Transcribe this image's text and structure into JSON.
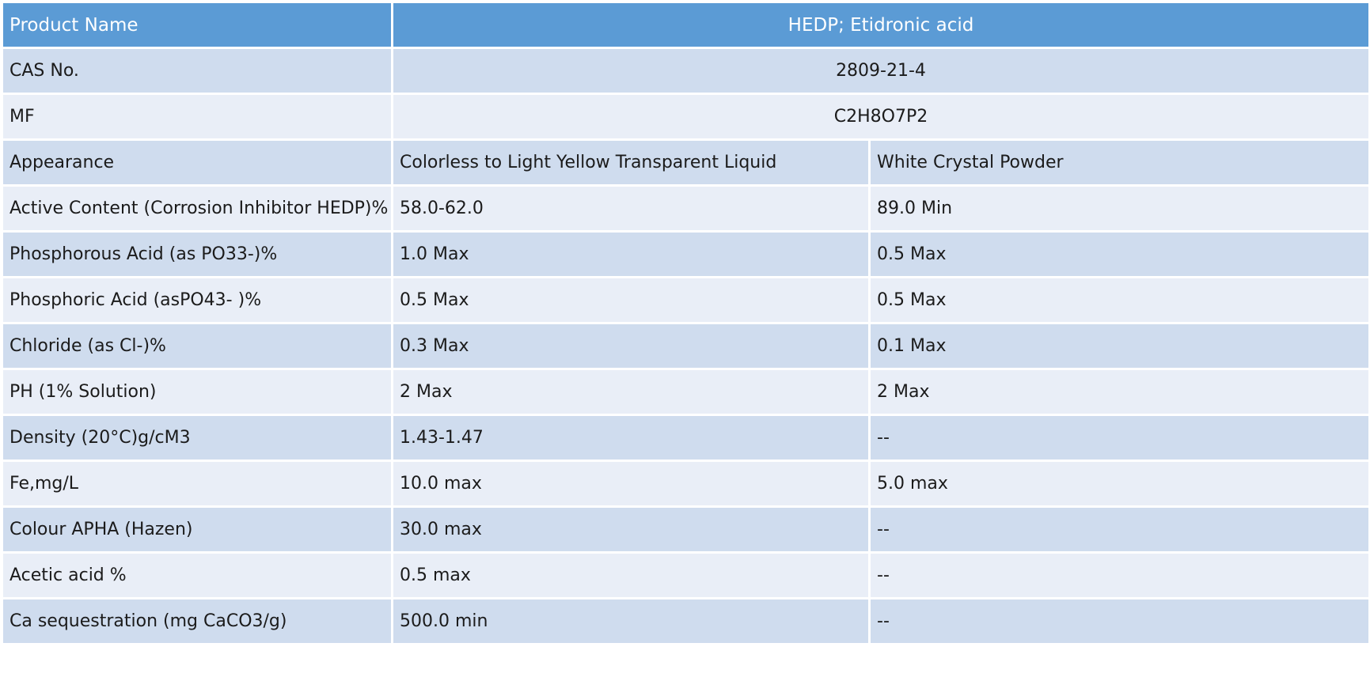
{
  "header": {
    "label": "Product Name",
    "value": "HEDP; Etidronic acid"
  },
  "merged_rows": [
    {
      "label": "CAS No.",
      "value": "2809-21-4"
    },
    {
      "label": "MF",
      "value": "C2H8O7P2"
    }
  ],
  "rows": [
    {
      "label": "Appearance",
      "liquid": "Colorless to Light Yellow Transparent Liquid",
      "powder": "White Crystal Powder"
    },
    {
      "label": "Active Content (Corrosion Inhibitor HEDP)%",
      "liquid": "58.0-62.0",
      "powder": "89.0 Min"
    },
    {
      "label": "Phosphorous Acid (as PO33-)%",
      "liquid": "1.0 Max",
      "powder": "0.5 Max"
    },
    {
      "label": "Phosphoric Acid (asPO43- )%",
      "liquid": "0.5 Max",
      "powder": "0.5 Max"
    },
    {
      "label": "Chloride (as Cl-)%",
      "liquid": "0.3 Max",
      "powder": "0.1 Max"
    },
    {
      "label": "PH (1% Solution)",
      "liquid": "2 Max",
      "powder": "2 Max"
    },
    {
      "label": "Density (20°C)g/cM3",
      "liquid": "1.43-1.47",
      "powder": "--"
    },
    {
      "label": "Fe,mg/L",
      "liquid": "10.0 max",
      "powder": "5.0 max"
    },
    {
      "label": "Colour APHA (Hazen)",
      "liquid": "30.0 max",
      "powder": "--"
    },
    {
      "label": "Acetic acid %",
      "liquid": "0.5 max",
      "powder": "--"
    },
    {
      "label": "Ca sequestration (mg CaCO3/g)",
      "liquid": "500.0 min",
      "powder": "--"
    }
  ],
  "colors": {
    "header": "#5b9bd5",
    "row_dark": "#cfdcee",
    "row_light": "#e9eef7"
  }
}
